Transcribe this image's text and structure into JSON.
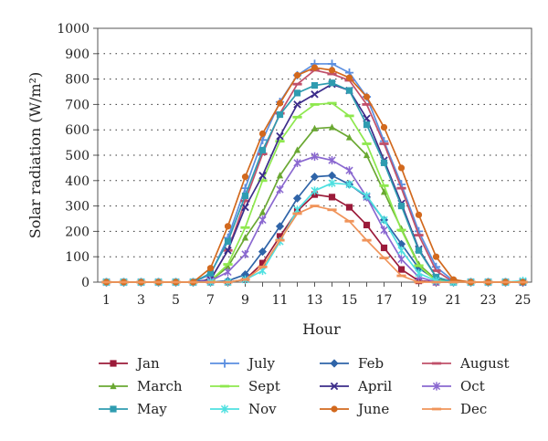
{
  "chart_data": {
    "type": "line",
    "xlabel": "Hour",
    "ylabel": "Solar radiation (W/m²)",
    "xlim": [
      0.5,
      25.5
    ],
    "ylim": [
      0,
      1000
    ],
    "x_ticks": [
      1,
      3,
      5,
      7,
      9,
      11,
      13,
      15,
      17,
      19,
      21,
      23,
      25
    ],
    "y_ticks": [
      0,
      100,
      200,
      300,
      400,
      500,
      600,
      700,
      800,
      900,
      1000
    ],
    "grid": "horizontal-dotted",
    "legend_position": "bottom",
    "x": [
      1,
      2,
      3,
      4,
      5,
      6,
      7,
      8,
      9,
      10,
      11,
      12,
      13,
      14,
      15,
      16,
      17,
      18,
      19,
      20,
      21,
      22,
      23,
      24,
      25
    ],
    "series": [
      {
        "name": "Jan",
        "color": "#9b1b3a",
        "marker": "square",
        "values": [
          0,
          0,
          0,
          0,
          0,
          0,
          0,
          0,
          10,
          75,
          180,
          280,
          345,
          335,
          295,
          225,
          135,
          50,
          5,
          0,
          0,
          0,
          0,
          0,
          0
        ]
      },
      {
        "name": "July",
        "color": "#5b8fe0",
        "marker": "plus",
        "values": [
          0,
          0,
          0,
          0,
          0,
          0,
          30,
          175,
          370,
          560,
          710,
          815,
          860,
          860,
          825,
          730,
          555,
          385,
          200,
          60,
          5,
          0,
          0,
          0,
          0
        ]
      },
      {
        "name": "Feb",
        "color": "#2f64a8",
        "marker": "diamond",
        "values": [
          0,
          0,
          0,
          0,
          0,
          0,
          0,
          5,
          30,
          120,
          220,
          330,
          415,
          420,
          385,
          335,
          245,
          150,
          55,
          10,
          0,
          0,
          0,
          0,
          0
        ]
      },
      {
        "name": "August",
        "color": "#c0506a",
        "marker": "dash",
        "values": [
          0,
          0,
          0,
          0,
          0,
          0,
          10,
          125,
          320,
          505,
          665,
          780,
          835,
          820,
          795,
          700,
          545,
          370,
          185,
          45,
          0,
          0,
          0,
          0,
          0
        ]
      },
      {
        "name": "March",
        "color": "#6aa832",
        "marker": "triangle",
        "values": [
          0,
          0,
          0,
          0,
          0,
          0,
          5,
          60,
          175,
          275,
          420,
          520,
          605,
          610,
          570,
          500,
          355,
          210,
          70,
          10,
          0,
          0,
          0,
          0,
          0
        ]
      },
      {
        "name": "Sept",
        "color": "#8ee84e",
        "marker": "dash",
        "values": [
          0,
          0,
          0,
          0,
          0,
          0,
          5,
          70,
          215,
          400,
          555,
          650,
          700,
          705,
          655,
          545,
          380,
          205,
          65,
          5,
          0,
          0,
          0,
          0,
          0
        ]
      },
      {
        "name": "April",
        "color": "#3c2d8a",
        "marker": "x",
        "values": [
          0,
          0,
          0,
          0,
          0,
          0,
          10,
          125,
          295,
          420,
          575,
          700,
          740,
          780,
          755,
          645,
          480,
          310,
          130,
          20,
          0,
          0,
          0,
          0,
          0
        ]
      },
      {
        "name": "Oct",
        "color": "#8a68d0",
        "marker": "star",
        "values": [
          0,
          0,
          0,
          0,
          0,
          0,
          5,
          40,
          110,
          245,
          365,
          470,
          495,
          480,
          440,
          335,
          205,
          90,
          20,
          0,
          0,
          0,
          0,
          0,
          0
        ]
      },
      {
        "name": "May",
        "color": "#2f9cb0",
        "marker": "square",
        "values": [
          0,
          0,
          0,
          0,
          0,
          0,
          35,
          160,
          340,
          520,
          660,
          745,
          775,
          785,
          755,
          620,
          470,
          300,
          125,
          20,
          0,
          0,
          0,
          0,
          0
        ]
      },
      {
        "name": "Nov",
        "color": "#4ee0e0",
        "marker": "star",
        "values": [
          0,
          0,
          0,
          0,
          0,
          0,
          0,
          0,
          10,
          45,
          160,
          285,
          360,
          390,
          385,
          340,
          245,
          125,
          35,
          5,
          0,
          0,
          0,
          0,
          5
        ]
      },
      {
        "name": "June",
        "color": "#d2691e",
        "marker": "circle",
        "values": [
          0,
          0,
          0,
          0,
          0,
          0,
          55,
          220,
          415,
          585,
          705,
          815,
          845,
          835,
          805,
          730,
          610,
          450,
          265,
          100,
          10,
          0,
          0,
          0,
          0
        ]
      },
      {
        "name": "Dec",
        "color": "#f0945a",
        "marker": "dash",
        "values": [
          0,
          0,
          0,
          0,
          0,
          0,
          0,
          0,
          10,
          60,
          165,
          270,
          300,
          285,
          240,
          165,
          95,
          25,
          0,
          0,
          0,
          0,
          0,
          0,
          0
        ]
      }
    ]
  }
}
